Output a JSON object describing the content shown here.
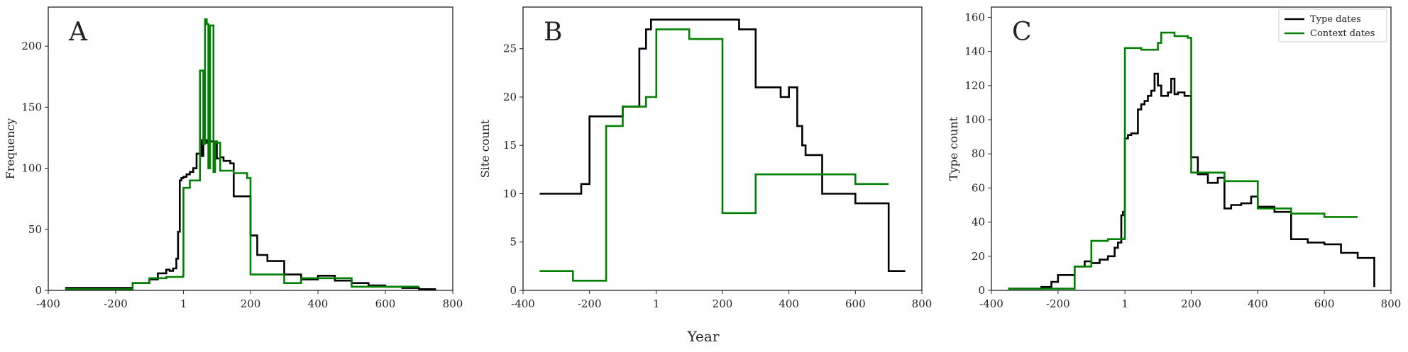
{
  "figure": {
    "shared_xlabel": "Year",
    "series_colors": {
      "Type dates": "#000000",
      "Context dates": "#008000"
    }
  },
  "chart_data": [
    {
      "type": "line",
      "panel_label": "A",
      "ylabel": "Frequency",
      "xlim": [
        -400,
        800
      ],
      "ylim": [
        0,
        232
      ],
      "xticks": [
        -400,
        -200,
        1,
        200,
        400,
        600,
        800
      ],
      "xtick_labels": [
        "-400",
        "-200",
        "1",
        "200",
        "400",
        "600",
        "800"
      ],
      "yticks": [
        0,
        50,
        100,
        150,
        200
      ],
      "series": [
        {
          "name": "Type dates",
          "color": "#000000",
          "x": [
            -350,
            -200,
            -150,
            -100,
            -75,
            -50,
            -40,
            -30,
            -20,
            -15,
            -10,
            -5,
            1,
            10,
            20,
            30,
            40,
            50,
            55,
            60,
            65,
            70,
            80,
            100,
            110,
            120,
            140,
            150,
            200,
            220,
            250,
            300,
            350,
            400,
            450,
            500,
            550,
            600,
            650,
            700,
            750
          ],
          "y": [
            2,
            2,
            6,
            9,
            14,
            17,
            16,
            18,
            26,
            48,
            90,
            92,
            93,
            95,
            97,
            100,
            112,
            123,
            110,
            124,
            121,
            123,
            122,
            108,
            109,
            106,
            104,
            77,
            45,
            29,
            24,
            13,
            9,
            12,
            8,
            6,
            4,
            3,
            2,
            1,
            1
          ]
        },
        {
          "name": "Context dates",
          "color": "#008000",
          "x": [
            -350,
            -150,
            -100,
            -50,
            0,
            1,
            20,
            50,
            60,
            65,
            70,
            75,
            80,
            90,
            95,
            100,
            110,
            150,
            190,
            200,
            300,
            350,
            400,
            500,
            600,
            700
          ],
          "y": [
            1,
            6,
            10,
            11,
            12,
            84,
            90,
            180,
            120,
            222,
            218,
            100,
            217,
            97,
            122,
            121,
            98,
            96,
            92,
            13,
            6,
            10,
            10,
            3,
            3,
            3
          ]
        }
      ]
    },
    {
      "type": "line",
      "panel_label": "B",
      "ylabel": "Site count",
      "xlim": [
        -400,
        800
      ],
      "ylim": [
        0,
        29.3
      ],
      "xticks": [
        -400,
        -200,
        1,
        200,
        400,
        600,
        800
      ],
      "xtick_labels": [
        "-400",
        "-200",
        "1",
        "200",
        "400",
        "600",
        "800"
      ],
      "yticks": [
        0,
        5,
        10,
        15,
        20,
        25
      ],
      "series": [
        {
          "name": "Type dates",
          "color": "#000000",
          "x": [
            -350,
            -225,
            -200,
            -150,
            -100,
            -90,
            -50,
            -30,
            -15,
            1,
            50,
            100,
            150,
            200,
            250,
            300,
            350,
            375,
            400,
            425,
            440,
            450,
            500,
            550,
            600,
            650,
            700,
            750
          ],
          "y": [
            10,
            11,
            18,
            18,
            19,
            19,
            25,
            27,
            28,
            28,
            28,
            28,
            28,
            28,
            27,
            21,
            21,
            20,
            21,
            17,
            15,
            14,
            10,
            10,
            9,
            9,
            2,
            2
          ]
        },
        {
          "name": "Context dates",
          "color": "#008000",
          "x": [
            -350,
            -250,
            -150,
            -100,
            -30,
            1,
            100,
            200,
            300,
            400,
            500,
            600,
            700
          ],
          "y": [
            2,
            1,
            17,
            19,
            20,
            27,
            26,
            8,
            12,
            12,
            12,
            11,
            11
          ]
        }
      ]
    },
    {
      "type": "line",
      "panel_label": "C",
      "ylabel": "Type count",
      "xlim": [
        -400,
        800
      ],
      "ylim": [
        0,
        166
      ],
      "xticks": [
        -400,
        -200,
        1,
        200,
        400,
        600,
        800
      ],
      "xtick_labels": [
        "-400",
        "-200",
        "1",
        "200",
        "400",
        "600",
        "800"
      ],
      "yticks": [
        0,
        20,
        40,
        60,
        80,
        100,
        120,
        140,
        160
      ],
      "legend": [
        "Type dates",
        "Context dates"
      ],
      "legend_position": "top-right",
      "series": [
        {
          "name": "Type dates",
          "color": "#000000",
          "x": [
            -350,
            -250,
            -220,
            -200,
            -150,
            -120,
            -100,
            -75,
            -50,
            -30,
            -20,
            -10,
            -5,
            1,
            10,
            20,
            40,
            50,
            60,
            70,
            80,
            90,
            100,
            110,
            130,
            140,
            150,
            160,
            180,
            200,
            220,
            250,
            280,
            300,
            320,
            350,
            380,
            400,
            450,
            500,
            550,
            600,
            650,
            700,
            750
          ],
          "y": [
            1,
            2,
            5,
            9,
            14,
            17,
            16,
            18,
            20,
            25,
            28,
            44,
            46,
            89,
            91,
            92,
            106,
            109,
            111,
            114,
            117,
            127,
            120,
            114,
            116,
            124,
            115,
            116,
            114,
            78,
            68,
            63,
            66,
            48,
            50,
            51,
            55,
            49,
            46,
            30,
            28,
            27,
            22,
            19,
            2
          ]
        },
        {
          "name": "Context dates",
          "color": "#008000",
          "x": [
            -350,
            -150,
            -100,
            -50,
            0,
            1,
            50,
            100,
            110,
            150,
            190,
            200,
            300,
            400,
            500,
            600,
            700
          ],
          "y": [
            1,
            14,
            29,
            30,
            31,
            142,
            141,
            145,
            151,
            149,
            148,
            69,
            64,
            48,
            45,
            43,
            43
          ]
        }
      ]
    }
  ]
}
